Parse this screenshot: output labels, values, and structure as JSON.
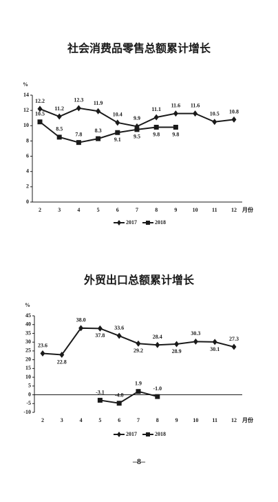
{
  "chart_data": [
    {
      "type": "line",
      "title": "社会消费品零售总额累计增长",
      "ylabel": "%",
      "xlabel": "月份",
      "categories": [
        "2",
        "3",
        "4",
        "5",
        "6",
        "7",
        "8",
        "9",
        "10",
        "11",
        "12"
      ],
      "ylim": [
        0,
        14
      ],
      "yticks": [
        0,
        2,
        4,
        6,
        8,
        10,
        12,
        14
      ],
      "grid": false,
      "series": [
        {
          "name": "2017",
          "color": "#1a1a1a",
          "marker": "diamond",
          "values": [
            12.2,
            11.2,
            12.3,
            11.9,
            10.4,
            9.9,
            11.1,
            11.6,
            11.6,
            10.5,
            10.8
          ]
        },
        {
          "name": "2018",
          "color": "#1a1a1a",
          "marker": "square",
          "values": [
            10.5,
            8.5,
            7.8,
            8.3,
            9.1,
            9.5,
            9.8,
            9.8,
            null,
            null,
            null
          ]
        }
      ]
    },
    {
      "type": "line",
      "title": "外贸出口总额累计增长",
      "ylabel": "%",
      "xlabel": "月份",
      "categories": [
        "2",
        "3",
        "4",
        "5",
        "6",
        "7",
        "8",
        "9",
        "10",
        "11",
        "12"
      ],
      "ylim": [
        -10,
        45
      ],
      "yticks": [
        -10,
        -5,
        0,
        5,
        10,
        15,
        20,
        25,
        30,
        35,
        40,
        45
      ],
      "grid": false,
      "series": [
        {
          "name": "2017",
          "color": "#1a1a1a",
          "marker": "diamond",
          "values": [
            23.6,
            22.8,
            38.0,
            37.8,
            33.6,
            29.2,
            28.4,
            28.9,
            30.3,
            30.1,
            27.3
          ],
          "value_labels": [
            "23.6",
            "22.8",
            "38.0",
            "37.8",
            "33.6",
            "29.2",
            "28.4",
            "28.9",
            "30.3",
            "30.1",
            "27.3"
          ]
        },
        {
          "name": "2018",
          "color": "#1a1a1a",
          "marker": "square",
          "values": [
            null,
            null,
            null,
            -3.1,
            -4.8,
            1.9,
            -1.0,
            null,
            null,
            null,
            null
          ],
          "value_labels": [
            null,
            null,
            null,
            "-3.1",
            "-4.8",
            "1.9",
            "-1.0",
            null,
            null,
            null,
            null
          ]
        }
      ]
    }
  ],
  "footer": {
    "page_number": "–8–"
  }
}
